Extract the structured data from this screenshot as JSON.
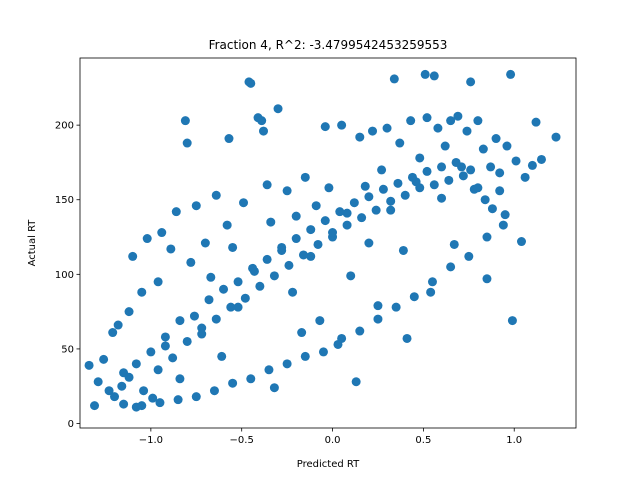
{
  "chart_data": {
    "type": "scatter",
    "title": "Fraction 4, R^2: -3.4799542453259553",
    "xlabel": "Predicted RT",
    "ylabel": "Actual RT",
    "xlim": [
      -1.39,
      1.34
    ],
    "ylim": [
      -3,
      245
    ],
    "xticks": [
      {
        "value": -1.0,
        "label": "−1.0"
      },
      {
        "value": -0.5,
        "label": "−0.5"
      },
      {
        "value": 0.0,
        "label": "0.0"
      },
      {
        "value": 0.5,
        "label": "0.5"
      },
      {
        "value": 1.0,
        "label": "1.0"
      }
    ],
    "yticks": [
      {
        "value": 0,
        "label": "0"
      },
      {
        "value": 50,
        "label": "50"
      },
      {
        "value": 100,
        "label": "100"
      },
      {
        "value": 150,
        "label": "150"
      },
      {
        "value": 200,
        "label": "200"
      }
    ],
    "grid": false,
    "marker_color": "#1f77b4",
    "points": [
      {
        "x": -1.34,
        "y": 39
      },
      {
        "x": -1.31,
        "y": 12
      },
      {
        "x": -1.29,
        "y": 28
      },
      {
        "x": -1.26,
        "y": 43
      },
      {
        "x": -1.23,
        "y": 22
      },
      {
        "x": -1.21,
        "y": 61
      },
      {
        "x": -1.18,
        "y": 66
      },
      {
        "x": -1.15,
        "y": 34
      },
      {
        "x": -1.12,
        "y": 75
      },
      {
        "x": -1.1,
        "y": 112
      },
      {
        "x": -1.08,
        "y": 11
      },
      {
        "x": -1.05,
        "y": 88
      },
      {
        "x": -1.02,
        "y": 124
      },
      {
        "x": -0.99,
        "y": 17
      },
      {
        "x": -0.96,
        "y": 95
      },
      {
        "x": -0.94,
        "y": 128
      },
      {
        "x": -0.92,
        "y": 52
      },
      {
        "x": -0.89,
        "y": 117
      },
      {
        "x": -0.86,
        "y": 142
      },
      {
        "x": -0.84,
        "y": 30
      },
      {
        "x": -0.81,
        "y": 203
      },
      {
        "x": -0.8,
        "y": 188
      },
      {
        "x": -0.78,
        "y": 108
      },
      {
        "x": -0.75,
        "y": 146
      },
      {
        "x": -0.72,
        "y": 64
      },
      {
        "x": -0.7,
        "y": 121
      },
      {
        "x": -0.67,
        "y": 98
      },
      {
        "x": -0.64,
        "y": 153
      },
      {
        "x": -0.61,
        "y": 45
      },
      {
        "x": -0.58,
        "y": 133
      },
      {
        "x": -0.57,
        "y": 191
      },
      {
        "x": -0.55,
        "y": 118
      },
      {
        "x": -0.52,
        "y": 78
      },
      {
        "x": -0.49,
        "y": 148
      },
      {
        "x": -0.46,
        "y": 229
      },
      {
        "x": -0.45,
        "y": 228
      },
      {
        "x": -0.43,
        "y": 102
      },
      {
        "x": -0.41,
        "y": 205
      },
      {
        "x": -0.39,
        "y": 203
      },
      {
        "x": -0.38,
        "y": 196
      },
      {
        "x": -0.36,
        "y": 160
      },
      {
        "x": -0.34,
        "y": 135
      },
      {
        "x": -0.32,
        "y": 24
      },
      {
        "x": -0.3,
        "y": 211
      },
      {
        "x": -0.28,
        "y": 116
      },
      {
        "x": -0.25,
        "y": 156
      },
      {
        "x": -0.22,
        "y": 88
      },
      {
        "x": -0.2,
        "y": 139
      },
      {
        "x": -0.17,
        "y": 61
      },
      {
        "x": -0.15,
        "y": 165
      },
      {
        "x": -0.12,
        "y": 112
      },
      {
        "x": -0.09,
        "y": 146
      },
      {
        "x": -0.07,
        "y": 69
      },
      {
        "x": -0.04,
        "y": 199
      },
      {
        "x": -0.02,
        "y": 158
      },
      {
        "x": 0.0,
        "y": 125
      },
      {
        "x": 0.03,
        "y": 53
      },
      {
        "x": 0.05,
        "y": 200
      },
      {
        "x": 0.08,
        "y": 141
      },
      {
        "x": 0.1,
        "y": 99
      },
      {
        "x": 0.13,
        "y": 28
      },
      {
        "x": 0.15,
        "y": 192
      },
      {
        "x": 0.18,
        "y": 159
      },
      {
        "x": 0.2,
        "y": 121
      },
      {
        "x": 0.22,
        "y": 196
      },
      {
        "x": 0.25,
        "y": 79
      },
      {
        "x": 0.27,
        "y": 170
      },
      {
        "x": 0.3,
        "y": 198
      },
      {
        "x": 0.32,
        "y": 143
      },
      {
        "x": 0.34,
        "y": 231
      },
      {
        "x": 0.37,
        "y": 188
      },
      {
        "x": 0.39,
        "y": 116
      },
      {
        "x": 0.41,
        "y": 57
      },
      {
        "x": 0.43,
        "y": 203
      },
      {
        "x": 0.46,
        "y": 162
      },
      {
        "x": 0.48,
        "y": 178
      },
      {
        "x": 0.51,
        "y": 234
      },
      {
        "x": 0.52,
        "y": 205
      },
      {
        "x": 0.54,
        "y": 88
      },
      {
        "x": 0.56,
        "y": 233
      },
      {
        "x": 0.58,
        "y": 198
      },
      {
        "x": 0.6,
        "y": 151
      },
      {
        "x": 0.62,
        "y": 186
      },
      {
        "x": 0.65,
        "y": 203
      },
      {
        "x": 0.67,
        "y": 120
      },
      {
        "x": 0.69,
        "y": 206
      },
      {
        "x": 0.71,
        "y": 172
      },
      {
        "x": 0.74,
        "y": 196
      },
      {
        "x": 0.76,
        "y": 229
      },
      {
        "x": 0.78,
        "y": 157
      },
      {
        "x": 0.8,
        "y": 203
      },
      {
        "x": 0.83,
        "y": 184
      },
      {
        "x": 0.85,
        "y": 97
      },
      {
        "x": 0.87,
        "y": 172
      },
      {
        "x": 0.9,
        "y": 191
      },
      {
        "x": 0.92,
        "y": 168
      },
      {
        "x": 0.94,
        "y": 133
      },
      {
        "x": 0.96,
        "y": 186
      },
      {
        "x": 0.98,
        "y": 234
      },
      {
        "x": 0.99,
        "y": 69
      },
      {
        "x": 1.01,
        "y": 176
      },
      {
        "x": 1.04,
        "y": 122
      },
      {
        "x": 1.06,
        "y": 165
      },
      {
        "x": 1.1,
        "y": 173
      },
      {
        "x": 1.12,
        "y": 202
      },
      {
        "x": 1.15,
        "y": 177
      },
      {
        "x": 1.23,
        "y": 192
      },
      {
        "x": -1.2,
        "y": 18
      },
      {
        "x": -1.16,
        "y": 25
      },
      {
        "x": -1.12,
        "y": 31
      },
      {
        "x": -1.08,
        "y": 40
      },
      {
        "x": -1.04,
        "y": 22
      },
      {
        "x": -1.0,
        "y": 48
      },
      {
        "x": -0.96,
        "y": 36
      },
      {
        "x": -0.92,
        "y": 58
      },
      {
        "x": -0.88,
        "y": 44
      },
      {
        "x": -0.84,
        "y": 69
      },
      {
        "x": -0.8,
        "y": 55
      },
      {
        "x": -0.76,
        "y": 72
      },
      {
        "x": -0.72,
        "y": 60
      },
      {
        "x": -0.68,
        "y": 83
      },
      {
        "x": -0.64,
        "y": 70
      },
      {
        "x": -0.6,
        "y": 90
      },
      {
        "x": -0.56,
        "y": 78
      },
      {
        "x": -0.52,
        "y": 95
      },
      {
        "x": -0.48,
        "y": 84
      },
      {
        "x": -0.44,
        "y": 104
      },
      {
        "x": -0.4,
        "y": 92
      },
      {
        "x": -0.36,
        "y": 110
      },
      {
        "x": -0.32,
        "y": 99
      },
      {
        "x": -0.28,
        "y": 118
      },
      {
        "x": -0.24,
        "y": 106
      },
      {
        "x": -0.2,
        "y": 124
      },
      {
        "x": -0.16,
        "y": 113
      },
      {
        "x": -0.12,
        "y": 130
      },
      {
        "x": -0.08,
        "y": 120
      },
      {
        "x": -0.04,
        "y": 136
      },
      {
        "x": 0.0,
        "y": 128
      },
      {
        "x": 0.04,
        "y": 142
      },
      {
        "x": 0.08,
        "y": 133
      },
      {
        "x": 0.12,
        "y": 148
      },
      {
        "x": 0.16,
        "y": 138
      },
      {
        "x": 0.2,
        "y": 152
      },
      {
        "x": 0.24,
        "y": 143
      },
      {
        "x": 0.28,
        "y": 157
      },
      {
        "x": 0.32,
        "y": 149
      },
      {
        "x": 0.36,
        "y": 161
      },
      {
        "x": 0.4,
        "y": 153
      },
      {
        "x": 0.44,
        "y": 165
      },
      {
        "x": 0.48,
        "y": 158
      },
      {
        "x": 0.52,
        "y": 169
      },
      {
        "x": 0.56,
        "y": 160
      },
      {
        "x": 0.6,
        "y": 172
      },
      {
        "x": 0.64,
        "y": 163
      },
      {
        "x": 0.68,
        "y": 175
      },
      {
        "x": 0.72,
        "y": 166
      },
      {
        "x": 0.76,
        "y": 170
      },
      {
        "x": 0.8,
        "y": 158
      },
      {
        "x": 0.84,
        "y": 150
      },
      {
        "x": 0.88,
        "y": 144
      },
      {
        "x": 0.92,
        "y": 156
      },
      {
        "x": -1.15,
        "y": 13
      },
      {
        "x": -1.05,
        "y": 12
      },
      {
        "x": -0.95,
        "y": 14
      },
      {
        "x": -0.85,
        "y": 16
      },
      {
        "x": -0.75,
        "y": 18
      },
      {
        "x": -0.65,
        "y": 22
      },
      {
        "x": -0.55,
        "y": 27
      },
      {
        "x": -0.45,
        "y": 30
      },
      {
        "x": -0.35,
        "y": 36
      },
      {
        "x": -0.25,
        "y": 40
      },
      {
        "x": -0.15,
        "y": 45
      },
      {
        "x": -0.05,
        "y": 48
      },
      {
        "x": 0.05,
        "y": 57
      },
      {
        "x": 0.15,
        "y": 62
      },
      {
        "x": 0.25,
        "y": 70
      },
      {
        "x": 0.35,
        "y": 78
      },
      {
        "x": 0.45,
        "y": 85
      },
      {
        "x": 0.55,
        "y": 95
      },
      {
        "x": 0.65,
        "y": 105
      },
      {
        "x": 0.75,
        "y": 112
      },
      {
        "x": 0.85,
        "y": 125
      },
      {
        "x": 0.95,
        "y": 140
      }
    ]
  }
}
